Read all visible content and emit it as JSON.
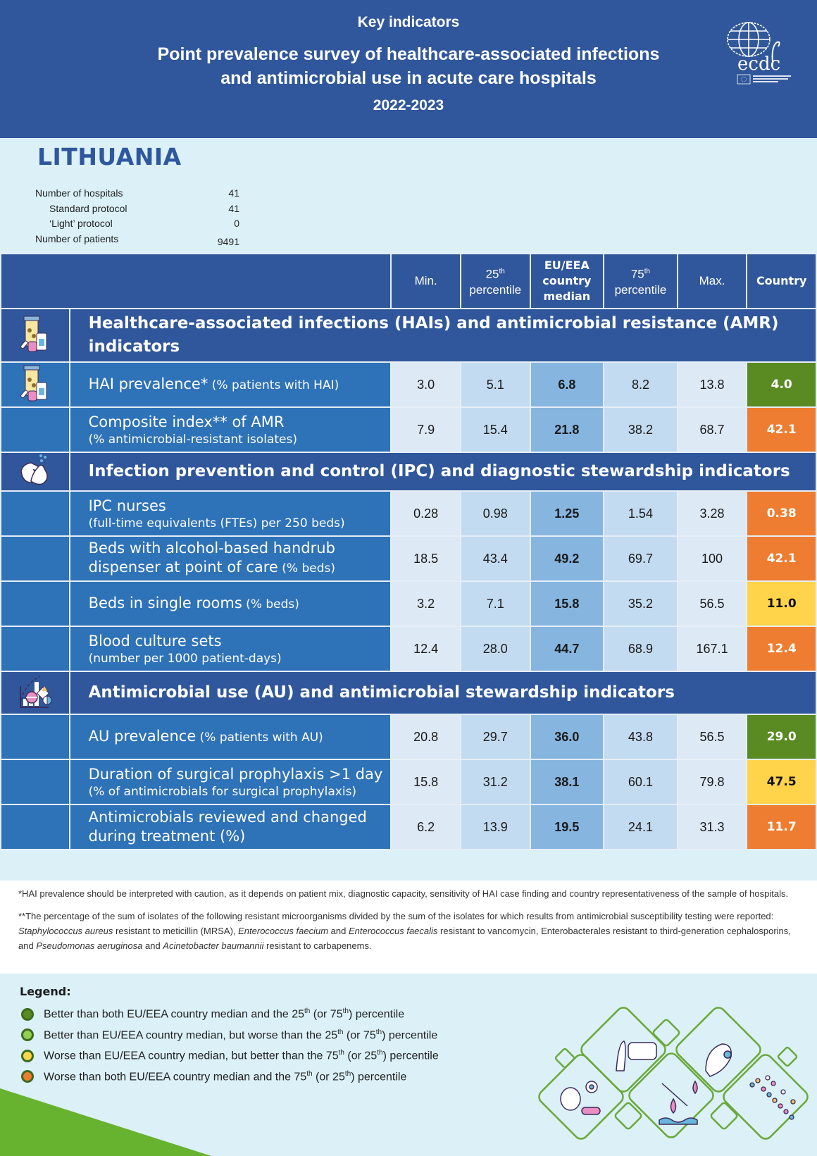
{
  "header": {
    "kicker": "Key indicators",
    "title_line1": "Point prevalence survey of healthcare-associated infections",
    "title_line2": "and antimicrobial use in acute care hospitals",
    "years": "2022-2023",
    "logo_text": "ecdc",
    "logo_subtext": "EUROPEAN CENTRE FOR DISEASE PREVENTION AND CONTROL"
  },
  "country": "LITHUANIA",
  "stats": [
    {
      "label": "Number of hospitals",
      "value": "41",
      "indent": false
    },
    {
      "label": "Standard protocol",
      "value": "41",
      "indent": true
    },
    {
      "label": "‘Light’ protocol",
      "value": "0",
      "indent": true
    },
    {
      "label": "Number of patients",
      "value": "9491",
      "indent": false
    }
  ],
  "columns": {
    "min": "Min.",
    "p25_num": "25",
    "p25_sup": "th",
    "p25_word": "percentile",
    "median_l1": "EU/EEA",
    "median_l2": "country",
    "median_l3": "median",
    "p75_num": "75",
    "p75_sup": "th",
    "p75_word": "percentile",
    "max": "Max.",
    "country": "Country"
  },
  "colors": {
    "dark_green": "#5a8a22",
    "light_green": "#92d050",
    "yellow": "#ffd44a",
    "orange": "#ee7d31",
    "header_blue": "#30579b",
    "row_blue": "#2e72b8"
  },
  "sections": [
    {
      "title": "Healthcare-associated infections (HAIs) and antimicrobial resistance (AMR) indicators",
      "icon": "medicine-bottles-icon",
      "rows": [
        {
          "main": "HAI prevalence*",
          "sub_inline": " (% patients with HAI)",
          "sub_block": "",
          "min": "3.0",
          "p25": "5.1",
          "median": "6.8",
          "p75": "8.2",
          "max": "13.8",
          "country": "4.0",
          "status": "dark_green"
        },
        {
          "main": "Composite index** of AMR",
          "sub_inline": "",
          "sub_block": "(% antimicrobial-resistant isolates)",
          "min": "7.9",
          "p25": "15.4",
          "median": "21.8",
          "p75": "38.2",
          "max": "68.7",
          "country": "42.1",
          "status": "orange"
        }
      ]
    },
    {
      "title": "Infection prevention and control (IPC) and diagnostic stewardship indicators",
      "icon": "hand-washing-icon",
      "rows": [
        {
          "main": "IPC nurses",
          "sub_inline": "",
          "sub_block": "(full-time equivalents (FTEs) per 250 beds)",
          "min": "0.28",
          "p25": "0.98",
          "median": "1.25",
          "p75": "1.54",
          "max": "3.28",
          "country": "0.38",
          "status": "orange"
        },
        {
          "main": "Beds with alcohol-based handrub dispenser at point of care",
          "sub_inline": " (% beds)",
          "sub_block": "",
          "min": "18.5",
          "p25": "43.4",
          "median": "49.2",
          "p75": "69.7",
          "max": "100",
          "country": "42.1",
          "status": "orange"
        },
        {
          "main": "Beds in single rooms",
          "sub_inline": " (% beds)",
          "sub_block": "",
          "min": "3.2",
          "p25": "7.1",
          "median": "15.8",
          "p75": "35.2",
          "max": "56.5",
          "country": "11.0",
          "status": "yellow"
        },
        {
          "main": "Blood culture sets",
          "sub_inline": "",
          "sub_block": "(number per 1000 patient-days)",
          "min": "12.4",
          "p25": "28.0",
          "median": "44.7",
          "p75": "68.9",
          "max": "167.1",
          "country": "12.4",
          "status": "orange"
        }
      ]
    },
    {
      "title": "Antimicrobial use (AU) and antimicrobial stewardship indicators",
      "icon": "antimicrobial-chart-icon",
      "rows": [
        {
          "main": "AU prevalence",
          "sub_inline": " (% patients with AU)",
          "sub_block": "",
          "min": "20.8",
          "p25": "29.7",
          "median": "36.0",
          "p75": "43.8",
          "max": "56.5",
          "country": "29.0",
          "status": "dark_green"
        },
        {
          "main": "Duration of surgical prophylaxis >1 day",
          "sub_inline": "",
          "sub_block": "(% of antimicrobials for surgical prophylaxis)",
          "min": "15.8",
          "p25": "31.2",
          "median": "38.1",
          "p75": "60.1",
          "max": "79.8",
          "country": "47.5",
          "status": "yellow"
        },
        {
          "main": "Antimicrobials reviewed and changed during treatment (%)",
          "sub_inline": "",
          "sub_block": "",
          "min": "6.2",
          "p25": "13.9",
          "median": "19.5",
          "p75": "24.1",
          "max": "31.3",
          "country": "11.7",
          "status": "orange"
        }
      ]
    }
  ],
  "footnotes": {
    "note1": "*HAI prevalence should be interpreted with caution, as it depends on patient mix, diagnostic capacity, sensitivity of HAI case finding and country representativeness of the sample of hospitals.",
    "note2_parts": [
      {
        "text": "**The percentage of the sum of isolates of the following resistant microorganisms divided by the sum of the isolates for which results from antimicrobial susceptibility testing were reported: ",
        "italic": false
      },
      {
        "text": "Staphylococcus aureus",
        "italic": true
      },
      {
        "text": " resistant to meticillin (MRSA), ",
        "italic": false
      },
      {
        "text": "Enterococcus faecium",
        "italic": true
      },
      {
        "text": " and ",
        "italic": false
      },
      {
        "text": "Enterococcus faecalis",
        "italic": true
      },
      {
        "text": " resistant to vancomycin, Enterobacterales resistant to third-generation cephalosporins, and ",
        "italic": false
      },
      {
        "text": "Pseudomonas aeruginosa",
        "italic": true
      },
      {
        "text": " and ",
        "italic": false
      },
      {
        "text": "Acinetobacter baumannii",
        "italic": true
      },
      {
        "text": " resistant to carbapenems.",
        "italic": false
      }
    ]
  },
  "legend": {
    "title": "Legend:",
    "items": [
      {
        "color": "#5a8a22",
        "text_a": "Better than both EU/EEA country median and the 25",
        "sup1": "th",
        "text_b": " (or 75",
        "sup2": "th",
        "text_c": ") percentile"
      },
      {
        "color": "#92d050",
        "text_a": "Better than EU/EEA country median, but worse than the 25",
        "sup1": "th",
        "text_b": " (or 75",
        "sup2": "th",
        "text_c": ") percentile"
      },
      {
        "color": "#ffd44a",
        "text_a": "Worse than EU/EEA country median, but better than the 75",
        "sup1": "th",
        "text_b": " (or 25",
        "sup2": "th",
        "text_c": ") percentile"
      },
      {
        "color": "#ee7d31",
        "text_a": "Worse than both EU/EEA country median and the 75",
        "sup1": "th",
        "text_b": " (or 25",
        "sup2": "th",
        "text_c": ") percentile"
      }
    ]
  }
}
